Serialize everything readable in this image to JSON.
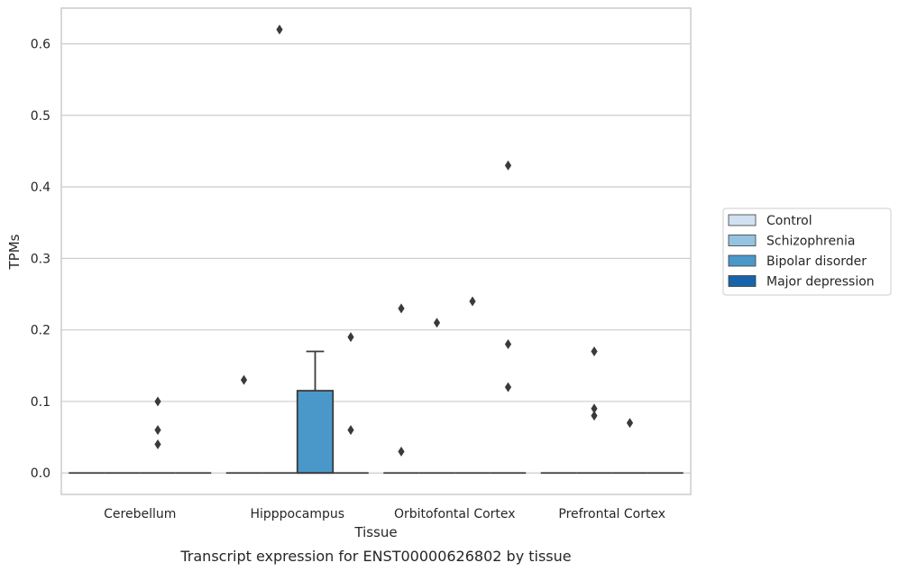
{
  "chart_data": {
    "type": "box",
    "xlabel": "Tissue",
    "ylabel": "TPMs",
    "caption": "Transcript expression for ENST00000626802 by tissue",
    "ylim": [
      -0.03,
      0.65
    ],
    "yticks": [
      "0.0",
      "0.1",
      "0.2",
      "0.3",
      "0.4",
      "0.5",
      "0.6"
    ],
    "grid": "horizontal",
    "legend_position": "right",
    "categories": [
      "Cerebellum",
      "Hipppocampus",
      "Orbitofontal Cortex",
      "Prefrontal Cortex"
    ],
    "series": [
      {
        "name": "Control",
        "color": "#d0e1f2"
      },
      {
        "name": "Schizophrenia",
        "color": "#94c4df"
      },
      {
        "name": "Bipolar disorder",
        "color": "#4a98c9"
      },
      {
        "name": "Major depression",
        "color": "#1764ab"
      }
    ],
    "boxes": [
      {
        "category": 0,
        "series": 0,
        "q1": 0,
        "median": 0,
        "q3": 0,
        "whisker_low": 0,
        "whisker_high": 0,
        "outliers": []
      },
      {
        "category": 0,
        "series": 1,
        "q1": 0,
        "median": 0,
        "q3": 0,
        "whisker_low": 0,
        "whisker_high": 0,
        "outliers": []
      },
      {
        "category": 0,
        "series": 2,
        "q1": 0,
        "median": 0,
        "q3": 0,
        "whisker_low": 0,
        "whisker_high": 0,
        "outliers": [
          0.1,
          0.06,
          0.04
        ]
      },
      {
        "category": 0,
        "series": 3,
        "q1": 0,
        "median": 0,
        "q3": 0,
        "whisker_low": 0,
        "whisker_high": 0,
        "outliers": []
      },
      {
        "category": 1,
        "series": 0,
        "q1": 0,
        "median": 0,
        "q3": 0,
        "whisker_low": 0,
        "whisker_high": 0,
        "outliers": [
          0.13
        ]
      },
      {
        "category": 1,
        "series": 1,
        "q1": 0,
        "median": 0,
        "q3": 0,
        "whisker_low": 0,
        "whisker_high": 0,
        "outliers": [
          0.62
        ]
      },
      {
        "category": 1,
        "series": 2,
        "q1": 0,
        "median": 0,
        "q3": 0.115,
        "whisker_low": 0,
        "whisker_high": 0.17,
        "outliers": []
      },
      {
        "category": 1,
        "series": 3,
        "q1": 0,
        "median": 0,
        "q3": 0,
        "whisker_low": 0,
        "whisker_high": 0,
        "outliers": [
          0.19,
          0.06
        ]
      },
      {
        "category": 2,
        "series": 0,
        "q1": 0,
        "median": 0,
        "q3": 0,
        "whisker_low": 0,
        "whisker_high": 0,
        "outliers": [
          0.23,
          0.03
        ]
      },
      {
        "category": 2,
        "series": 1,
        "q1": 0,
        "median": 0,
        "q3": 0,
        "whisker_low": 0,
        "whisker_high": 0,
        "outliers": [
          0.21
        ]
      },
      {
        "category": 2,
        "series": 2,
        "q1": 0,
        "median": 0,
        "q3": 0,
        "whisker_low": 0,
        "whisker_high": 0,
        "outliers": [
          0.24
        ]
      },
      {
        "category": 2,
        "series": 3,
        "q1": 0,
        "median": 0,
        "q3": 0,
        "whisker_low": 0,
        "whisker_high": 0,
        "outliers": [
          0.43,
          0.18,
          0.12
        ]
      },
      {
        "category": 3,
        "series": 0,
        "q1": 0,
        "median": 0,
        "q3": 0,
        "whisker_low": 0,
        "whisker_high": 0,
        "outliers": []
      },
      {
        "category": 3,
        "series": 1,
        "q1": 0,
        "median": 0,
        "q3": 0,
        "whisker_low": 0,
        "whisker_high": 0,
        "outliers": [
          0.17,
          0.09,
          0.08
        ]
      },
      {
        "category": 3,
        "series": 2,
        "q1": 0,
        "median": 0,
        "q3": 0,
        "whisker_low": 0,
        "whisker_high": 0,
        "outliers": [
          0.07
        ]
      },
      {
        "category": 3,
        "series": 3,
        "q1": 0,
        "median": 0,
        "q3": 0,
        "whisker_low": 0,
        "whisker_high": 0,
        "outliers": []
      }
    ],
    "colors": {
      "grid": "#cccccc",
      "frame": "#cccccc",
      "line": "#3a3a3a",
      "outlier": "#3a3a3a",
      "legend_border": "#cccccc"
    }
  }
}
